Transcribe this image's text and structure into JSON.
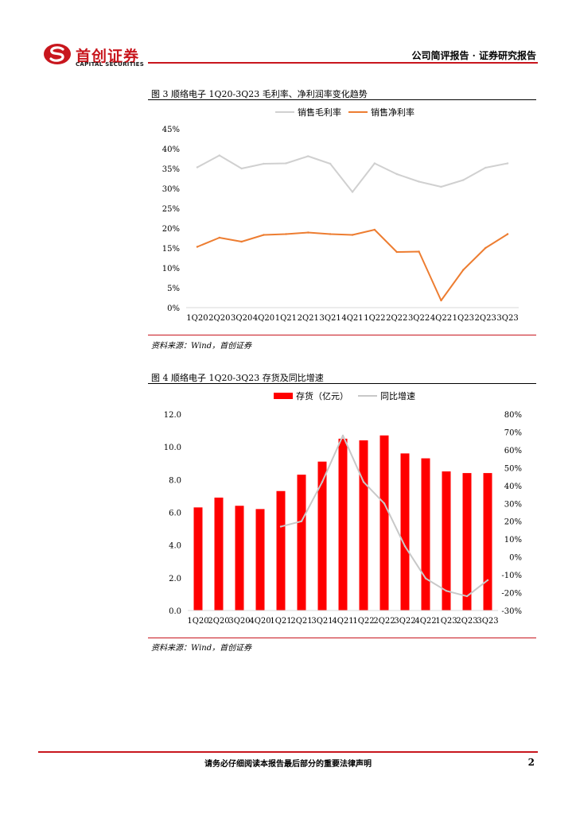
{
  "header": {
    "logo_cn": "首创证券",
    "logo_en": "CAPITAL SECURITIES",
    "report_type": "公司简评报告 · 证券研究报告"
  },
  "figures": {
    "fig3": {
      "title": "图 3  顺络电子 1Q20-3Q23 毛利率、净利润率变化趋势",
      "source": "资料来源：Wind，首创证券"
    },
    "fig4": {
      "title": "图 4  顺络电子 1Q20-3Q23 存货及同比增速",
      "source": "资料来源：Wind，首创证券"
    }
  },
  "footer": {
    "disclaimer": "请务必仔细阅读本报告最后部分的重要法律声明",
    "page": "2"
  },
  "colors": {
    "brand_red": "#c8161d",
    "gross_line": "#d0d0d0",
    "net_line": "#ed7d31",
    "bar_red": "#ff0000",
    "yoy_line": "#c8c8c8"
  },
  "chart_data": [
    {
      "type": "line",
      "title": "顺络电子 1Q20-3Q23 毛利率、净利润率变化趋势",
      "categories": [
        "1Q20",
        "2Q20",
        "3Q20",
        "4Q20",
        "1Q21",
        "2Q21",
        "3Q21",
        "4Q21",
        "1Q22",
        "2Q22",
        "3Q22",
        "4Q22",
        "1Q23",
        "2Q23",
        "3Q23"
      ],
      "series": [
        {
          "name": "销售毛利率",
          "values": [
            35.3,
            38.3,
            35.0,
            36.2,
            36.3,
            38.1,
            36.2,
            29.1,
            36.3,
            33.6,
            31.7,
            30.4,
            32.1,
            35.2,
            36.3
          ]
        },
        {
          "name": "销售净利率",
          "values": [
            15.3,
            17.6,
            16.6,
            18.3,
            18.5,
            18.9,
            18.5,
            18.3,
            19.6,
            14.0,
            14.1,
            1.8,
            9.5,
            15.0,
            18.5
          ]
        }
      ],
      "yticks": [
        "0%",
        "5%",
        "10%",
        "15%",
        "20%",
        "25%",
        "30%",
        "35%",
        "40%",
        "45%"
      ],
      "ylim": [
        0,
        45
      ],
      "legend": "top"
    },
    {
      "type": "bar",
      "title": "顺络电子 1Q20-3Q23 存货及同比增速",
      "categories": [
        "1Q20",
        "2Q20",
        "3Q20",
        "4Q20",
        "1Q21",
        "2Q21",
        "3Q21",
        "4Q21",
        "1Q22",
        "2Q22",
        "3Q22",
        "4Q22",
        "1Q23",
        "2Q23",
        "3Q23"
      ],
      "series": [
        {
          "name": "存货（亿元）",
          "type": "bar",
          "axis": "left",
          "values": [
            6.3,
            6.9,
            6.4,
            6.2,
            7.3,
            8.3,
            9.1,
            10.5,
            10.4,
            10.7,
            9.6,
            9.3,
            8.5,
            8.4,
            8.4
          ]
        },
        {
          "name": "同比增速",
          "type": "line",
          "axis": "right",
          "values": [
            null,
            null,
            null,
            null,
            17,
            20,
            42,
            68,
            42,
            30,
            6,
            -12,
            -19,
            -22,
            -13
          ]
        }
      ],
      "yticks_left": [
        "0.0",
        "2.0",
        "4.0",
        "6.0",
        "8.0",
        "10.0",
        "12.0"
      ],
      "ylim_left": [
        0,
        12
      ],
      "yticks_right": [
        "-30%",
        "-20%",
        "-10%",
        "0%",
        "10%",
        "20%",
        "30%",
        "40%",
        "50%",
        "60%",
        "70%",
        "80%"
      ],
      "ylim_right": [
        -30,
        80
      ],
      "legend": "top"
    }
  ]
}
